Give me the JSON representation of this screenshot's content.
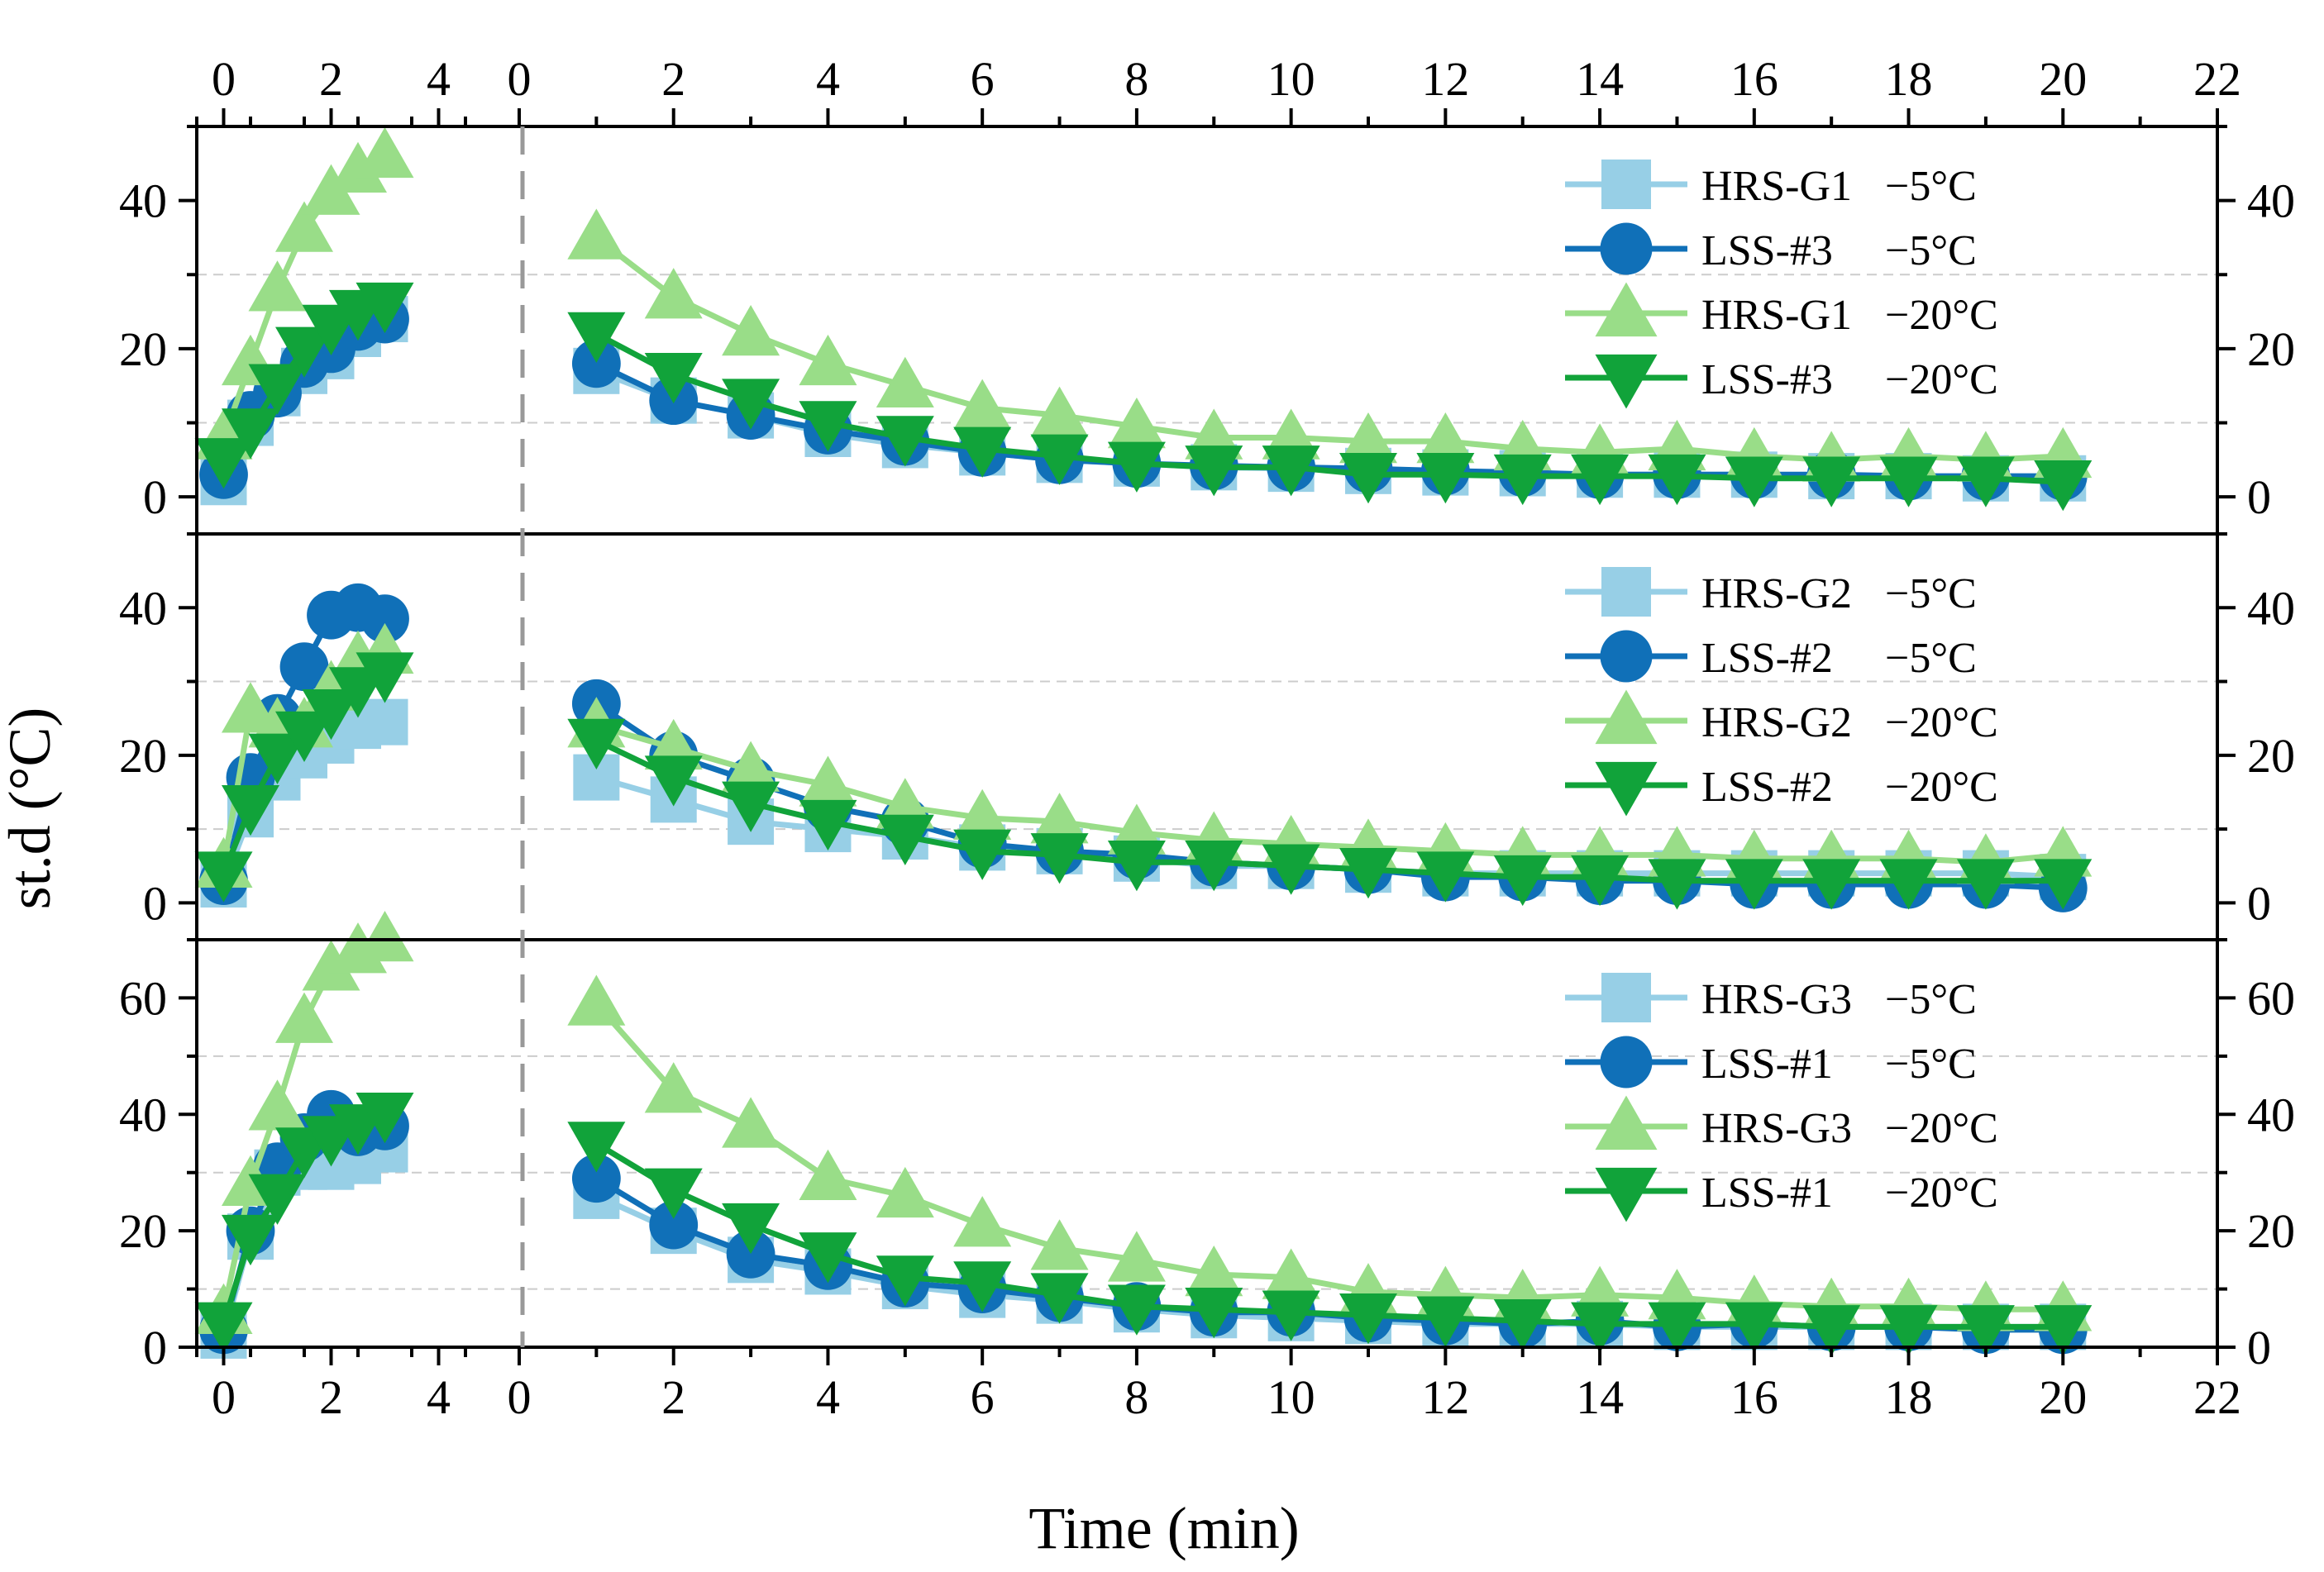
{
  "chart_data": {
    "type": "line",
    "xlabel": "Time (min)",
    "ylabel": "st.d (°C)",
    "x_left_ticks": [
      "0",
      "2",
      "4"
    ],
    "x_right_ticks": [
      "0",
      "2",
      "4",
      "6",
      "8",
      "10",
      "12",
      "14",
      "16",
      "18",
      "20",
      "22"
    ],
    "x_left_range": [
      -0.5,
      5.5
    ],
    "x_right_range": [
      0,
      22
    ],
    "x_left": [
      0,
      0.5,
      1,
      1.5,
      2,
      2.5,
      3
    ],
    "x_right": [
      1,
      2,
      3,
      4,
      5,
      6,
      7,
      8,
      9,
      10,
      11,
      12,
      13,
      14,
      15,
      16,
      17,
      18,
      19,
      20
    ],
    "panels": [
      {
        "name": "panel-1",
        "ylim": [
          -5,
          50
        ],
        "ytick_labels": [
          "0",
          "20",
          "40"
        ],
        "yticks": [
          0,
          20,
          40
        ],
        "gridlines": [
          10,
          30
        ],
        "series": [
          {
            "name": "HRS-G1",
            "label": "HRS-G1",
            "temp": "−5°C",
            "marker": "square",
            "color": "#97cfe6",
            "left": [
              2,
              10,
              14,
              17,
              19,
              22,
              24
            ],
            "right": [
              17,
              13,
              11,
              8.5,
              7,
              6,
              5,
              4.5,
              4,
              3.8,
              3.5,
              3.3,
              3.2,
              3,
              3,
              3,
              2.8,
              2.8,
              2.5,
              2.5
            ]
          },
          {
            "name": "LSS-#3",
            "label": "LSS-#3",
            "temp": "−5°C",
            "marker": "circle",
            "color": "#1070b8",
            "left": [
              3,
              11,
              14,
              18,
              20,
              23,
              24
            ],
            "right": [
              18,
              13,
              11,
              9,
              7.5,
              6,
              5,
              4.5,
              4.2,
              4,
              3.8,
              3.5,
              3.3,
              3,
              3,
              3,
              3,
              2.8,
              2.8,
              2.8
            ]
          },
          {
            "name": "HRS-G1-20",
            "label": "HRS-G1",
            "temp": "−20°C",
            "marker": "triangle-up",
            "color": "#99dd88",
            "left": [
              8,
              18,
              28,
              36,
              41,
              44,
              46
            ],
            "right": [
              35,
              27,
              22,
              18,
              15,
              12,
              11,
              9.5,
              8,
              8,
              7.5,
              7.5,
              6.5,
              6,
              6.5,
              5.5,
              5,
              5.5,
              5,
              5.5
            ]
          },
          {
            "name": "LSS-#3-20",
            "label": "LSS-#3",
            "temp": "−20°C",
            "marker": "triangle-down",
            "color": "#11a33a",
            "left": [
              5,
              9,
              15,
              20,
              23,
              25,
              26
            ],
            "right": [
              22,
              16.5,
              13,
              10,
              8,
              6.5,
              5.5,
              4.5,
              4,
              4,
              3,
              3,
              2.8,
              2.8,
              2.8,
              2.5,
              2.5,
              2.5,
              2.5,
              2
            ]
          }
        ]
      },
      {
        "name": "panel-2",
        "ylim": [
          -5,
          50
        ],
        "ytick_labels": [
          "0",
          "20",
          "40"
        ],
        "yticks": [
          0,
          20,
          40
        ],
        "gridlines": [
          10,
          30
        ],
        "series": [
          {
            "name": "HRS-G2",
            "label": "HRS-G2",
            "temp": "−5°C",
            "marker": "square",
            "color": "#97cfe6",
            "left": [
              2.5,
              12,
              17,
              20,
              22,
              24,
              24.5
            ],
            "right": [
              17,
              14,
              11,
              10,
              9,
              7.5,
              7,
              6,
              5,
              5,
              4.5,
              4,
              4,
              4,
              4,
              4,
              4,
              4,
              4,
              3.5
            ]
          },
          {
            "name": "LSS-#2",
            "label": "LSS-#2",
            "temp": "−5°C",
            "marker": "circle",
            "color": "#1070b8",
            "left": [
              3,
              17,
              25,
              32,
              39,
              40,
              38.5
            ],
            "right": [
              27,
              20,
              16.5,
              13,
              11,
              8,
              7,
              6.5,
              5.5,
              5,
              4.5,
              3.5,
              3.5,
              3,
              3,
              2.5,
              2.5,
              2.5,
              2.5,
              2
            ]
          },
          {
            "name": "HRS-G2-20",
            "label": "HRS-G2",
            "temp": "−20°C",
            "marker": "triangle-up",
            "color": "#99dd88",
            "left": [
              5,
              26,
              24,
              24,
              29,
              33,
              34
            ],
            "right": [
              24,
              21,
              18,
              16,
              13,
              11.5,
              11,
              9.5,
              8.5,
              8,
              7.5,
              7,
              6.5,
              6.5,
              6.5,
              6,
              6,
              6,
              5.5,
              6.5
            ]
          },
          {
            "name": "LSS-#2-20",
            "label": "LSS-#2",
            "temp": "−20°C",
            "marker": "triangle-down",
            "color": "#11a33a",
            "left": [
              4,
              13,
              20,
              23,
              26,
              29,
              31
            ],
            "right": [
              22,
              17,
              13.5,
              11,
              9,
              7,
              6.5,
              5.5,
              5.5,
              5,
              4.5,
              4,
              3.5,
              3.5,
              3,
              3,
              3,
              3,
              3,
              3
            ]
          }
        ]
      },
      {
        "name": "panel-3",
        "ylim": [
          0,
          70
        ],
        "ytick_labels": [
          "0",
          "20",
          "40",
          "60"
        ],
        "yticks": [
          0,
          20,
          40,
          60
        ],
        "gridlines": [
          10,
          30,
          50,
          70
        ],
        "series": [
          {
            "name": "HRS-G3",
            "label": "HRS-G3",
            "temp": "−5°C",
            "marker": "square",
            "color": "#97cfe6",
            "left": [
              2,
              19,
              30,
              31,
              31,
              32,
              34
            ],
            "right": [
              26,
              20,
              15,
              13,
              10.5,
              9,
              8,
              6.5,
              5.5,
              5,
              4.5,
              4,
              4,
              4,
              3.5,
              3.5,
              3.5,
              3.5,
              3.5,
              3.5
            ]
          },
          {
            "name": "LSS-#1",
            "label": "LSS-#1",
            "temp": "−5°C",
            "marker": "circle",
            "color": "#1070b8",
            "left": [
              3,
              20,
              31,
              36,
              40,
              37,
              38
            ],
            "right": [
              29,
              21,
              16,
              14,
              11,
              10,
              8.5,
              7,
              6,
              6,
              5,
              4.5,
              4,
              4.5,
              3.5,
              4,
              3.5,
              3.5,
              3,
              3
            ]
          },
          {
            "name": "HRS-G3-20",
            "label": "HRS-G3",
            "temp": "−20°C",
            "marker": "triangle-up",
            "color": "#99dd88",
            "left": [
              6,
              28,
              41,
              56,
              65,
              68,
              70
            ],
            "right": [
              59,
              44,
              38,
              29,
              26,
              21,
              17,
              15,
              12.5,
              12,
              9.5,
              9,
              8.5,
              9,
              8.5,
              7.5,
              7,
              7,
              6.5,
              6.5
            ]
          },
          {
            "name": "LSS-#1-20",
            "label": "LSS-#1",
            "temp": "−20°C",
            "marker": "triangle-down",
            "color": "#11a33a",
            "left": [
              4,
              19,
              26,
              34,
              36,
              38,
              40
            ],
            "right": [
              35,
              27,
              21,
              16,
              12,
              11,
              9,
              7,
              6.5,
              6,
              5.5,
              5,
              4.5,
              4,
              4,
              4,
              3.5,
              3.5,
              3.5,
              3.5
            ]
          }
        ]
      }
    ]
  }
}
